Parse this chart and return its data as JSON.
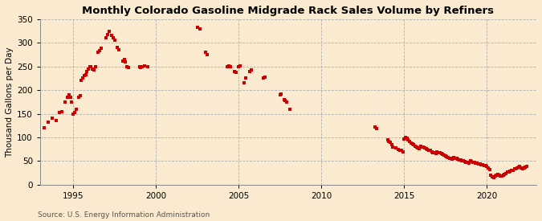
{
  "title": "Monthly Colorado Gasoline Midgrade Rack Sales Volume by Refiners",
  "ylabel": "Thousand Gallons per Day",
  "source": "Source: U.S. Energy Information Administration",
  "background_color": "#faebd0",
  "dot_color": "#cc0000",
  "xlim": [
    1993.0,
    2023.0
  ],
  "ylim": [
    0,
    350
  ],
  "yticks": [
    0,
    50,
    100,
    150,
    200,
    250,
    300,
    350
  ],
  "xticks": [
    1995,
    2000,
    2005,
    2010,
    2015,
    2020
  ],
  "data": [
    [
      1993.25,
      120
    ],
    [
      1993.5,
      133
    ],
    [
      1993.75,
      140
    ],
    [
      1994.0,
      135
    ],
    [
      1994.17,
      152
    ],
    [
      1994.33,
      155
    ],
    [
      1994.5,
      175
    ],
    [
      1994.67,
      185
    ],
    [
      1994.75,
      190
    ],
    [
      1994.83,
      185
    ],
    [
      1994.92,
      175
    ],
    [
      1995.0,
      150
    ],
    [
      1995.08,
      152
    ],
    [
      1995.17,
      160
    ],
    [
      1995.33,
      185
    ],
    [
      1995.42,
      188
    ],
    [
      1995.5,
      220
    ],
    [
      1995.58,
      225
    ],
    [
      1995.67,
      230
    ],
    [
      1995.75,
      232
    ],
    [
      1995.83,
      240
    ],
    [
      1995.92,
      245
    ],
    [
      1996.0,
      250
    ],
    [
      1996.08,
      250
    ],
    [
      1996.17,
      245
    ],
    [
      1996.25,
      242
    ],
    [
      1996.33,
      250
    ],
    [
      1996.5,
      280
    ],
    [
      1996.58,
      283
    ],
    [
      1996.67,
      288
    ],
    [
      1997.0,
      310
    ],
    [
      1997.08,
      318
    ],
    [
      1997.17,
      325
    ],
    [
      1997.33,
      315
    ],
    [
      1997.42,
      310
    ],
    [
      1997.5,
      305
    ],
    [
      1997.67,
      290
    ],
    [
      1997.75,
      285
    ],
    [
      1998.0,
      262
    ],
    [
      1998.08,
      265
    ],
    [
      1998.17,
      260
    ],
    [
      1998.25,
      250
    ],
    [
      1998.33,
      248
    ],
    [
      1999.0,
      250
    ],
    [
      1999.08,
      248
    ],
    [
      1999.17,
      250
    ],
    [
      1999.33,
      252
    ],
    [
      1999.5,
      250
    ],
    [
      2002.5,
      332
    ],
    [
      2002.67,
      330
    ],
    [
      2003.0,
      280
    ],
    [
      2003.08,
      275
    ],
    [
      2004.33,
      250
    ],
    [
      2004.42,
      252
    ],
    [
      2004.5,
      250
    ],
    [
      2004.75,
      240
    ],
    [
      2004.83,
      238
    ],
    [
      2005.0,
      250
    ],
    [
      2005.08,
      252
    ],
    [
      2005.33,
      215
    ],
    [
      2005.42,
      225
    ],
    [
      2005.67,
      240
    ],
    [
      2005.75,
      242
    ],
    [
      2006.5,
      225
    ],
    [
      2006.58,
      228
    ],
    [
      2007.5,
      190
    ],
    [
      2007.58,
      192
    ],
    [
      2007.75,
      180
    ],
    [
      2007.83,
      178
    ],
    [
      2007.92,
      175
    ],
    [
      2008.08,
      160
    ],
    [
      2013.25,
      122
    ],
    [
      2013.33,
      118
    ],
    [
      2014.0,
      95
    ],
    [
      2014.08,
      92
    ],
    [
      2014.17,
      90
    ],
    [
      2014.25,
      85
    ],
    [
      2014.33,
      80
    ],
    [
      2014.5,
      78
    ],
    [
      2014.67,
      75
    ],
    [
      2014.75,
      72
    ],
    [
      2014.83,
      73
    ],
    [
      2014.92,
      70
    ],
    [
      2015.0,
      97
    ],
    [
      2015.08,
      100
    ],
    [
      2015.17,
      98
    ],
    [
      2015.25,
      95
    ],
    [
      2015.33,
      92
    ],
    [
      2015.42,
      88
    ],
    [
      2015.5,
      86
    ],
    [
      2015.58,
      84
    ],
    [
      2015.67,
      82
    ],
    [
      2015.75,
      80
    ],
    [
      2015.83,
      78
    ],
    [
      2015.92,
      76
    ],
    [
      2016.0,
      82
    ],
    [
      2016.08,
      80
    ],
    [
      2016.17,
      79
    ],
    [
      2016.25,
      78
    ],
    [
      2016.33,
      76
    ],
    [
      2016.42,
      74
    ],
    [
      2016.5,
      73
    ],
    [
      2016.58,
      72
    ],
    [
      2016.67,
      70
    ],
    [
      2016.75,
      68
    ],
    [
      2016.83,
      67
    ],
    [
      2016.92,
      66
    ],
    [
      2017.0,
      70
    ],
    [
      2017.08,
      68
    ],
    [
      2017.17,
      67
    ],
    [
      2017.25,
      66
    ],
    [
      2017.33,
      64
    ],
    [
      2017.42,
      62
    ],
    [
      2017.5,
      61
    ],
    [
      2017.58,
      59
    ],
    [
      2017.67,
      58
    ],
    [
      2017.75,
      56
    ],
    [
      2017.83,
      55
    ],
    [
      2017.92,
      54
    ],
    [
      2018.0,
      57
    ],
    [
      2018.08,
      56
    ],
    [
      2018.17,
      55
    ],
    [
      2018.25,
      54
    ],
    [
      2018.33,
      53
    ],
    [
      2018.42,
      52
    ],
    [
      2018.5,
      51
    ],
    [
      2018.58,
      50
    ],
    [
      2018.67,
      49
    ],
    [
      2018.75,
      48
    ],
    [
      2018.83,
      47
    ],
    [
      2018.92,
      46
    ],
    [
      2019.0,
      50
    ],
    [
      2019.08,
      49
    ],
    [
      2019.17,
      48
    ],
    [
      2019.25,
      47
    ],
    [
      2019.33,
      46
    ],
    [
      2019.42,
      45
    ],
    [
      2019.5,
      44
    ],
    [
      2019.58,
      43
    ],
    [
      2019.67,
      42
    ],
    [
      2019.75,
      42
    ],
    [
      2019.83,
      41
    ],
    [
      2019.92,
      40
    ],
    [
      2020.0,
      38
    ],
    [
      2020.08,
      36
    ],
    [
      2020.17,
      32
    ],
    [
      2020.25,
      20
    ],
    [
      2020.33,
      17
    ],
    [
      2020.42,
      15
    ],
    [
      2020.5,
      18
    ],
    [
      2020.58,
      20
    ],
    [
      2020.67,
      21
    ],
    [
      2020.75,
      20
    ],
    [
      2020.83,
      19
    ],
    [
      2020.92,
      18
    ],
    [
      2021.0,
      20
    ],
    [
      2021.08,
      22
    ],
    [
      2021.17,
      24
    ],
    [
      2021.25,
      26
    ],
    [
      2021.33,
      27
    ],
    [
      2021.42,
      28
    ],
    [
      2021.5,
      30
    ],
    [
      2021.58,
      31
    ],
    [
      2021.67,
      33
    ],
    [
      2021.75,
      34
    ],
    [
      2021.83,
      35
    ],
    [
      2021.92,
      37
    ],
    [
      2022.0,
      38
    ],
    [
      2022.08,
      36
    ],
    [
      2022.17,
      34
    ],
    [
      2022.25,
      35
    ],
    [
      2022.33,
      37
    ],
    [
      2022.42,
      39
    ]
  ]
}
